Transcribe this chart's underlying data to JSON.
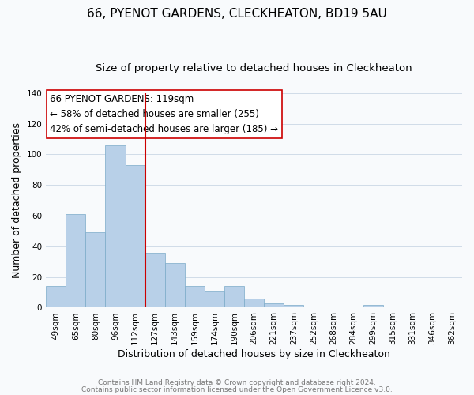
{
  "title": "66, PYENOT GARDENS, CLECKHEATON, BD19 5AU",
  "subtitle": "Size of property relative to detached houses in Cleckheaton",
  "xlabel": "Distribution of detached houses by size in Cleckheaton",
  "ylabel": "Number of detached properties",
  "footer1": "Contains HM Land Registry data © Crown copyright and database right 2024.",
  "footer2": "Contains public sector information licensed under the Open Government Licence v3.0.",
  "bar_labels": [
    "49sqm",
    "65sqm",
    "80sqm",
    "96sqm",
    "112sqm",
    "127sqm",
    "143sqm",
    "159sqm",
    "174sqm",
    "190sqm",
    "206sqm",
    "221sqm",
    "237sqm",
    "252sqm",
    "268sqm",
    "284sqm",
    "299sqm",
    "315sqm",
    "331sqm",
    "346sqm",
    "362sqm"
  ],
  "bar_values": [
    14,
    61,
    49,
    106,
    93,
    36,
    29,
    14,
    11,
    14,
    6,
    3,
    2,
    0,
    0,
    0,
    2,
    0,
    1,
    0,
    1
  ],
  "bar_color": "#b8d0e8",
  "bar_edge_color": "#7aaac8",
  "vline_color": "#cc0000",
  "vline_index": 4,
  "annotation_title": "66 PYENOT GARDENS: 119sqm",
  "annotation_line1": "← 58% of detached houses are smaller (255)",
  "annotation_line2": "42% of semi-detached houses are larger (185) →",
  "ylim": [
    0,
    140
  ],
  "yticks": [
    0,
    20,
    40,
    60,
    80,
    100,
    120,
    140
  ],
  "bg_color": "#f8fafc",
  "grid_color": "#d0dce8",
  "title_fontsize": 11,
  "subtitle_fontsize": 9.5,
  "axis_label_fontsize": 9,
  "tick_fontsize": 7.5,
  "annotation_fontsize": 8.5,
  "footer_fontsize": 6.5
}
